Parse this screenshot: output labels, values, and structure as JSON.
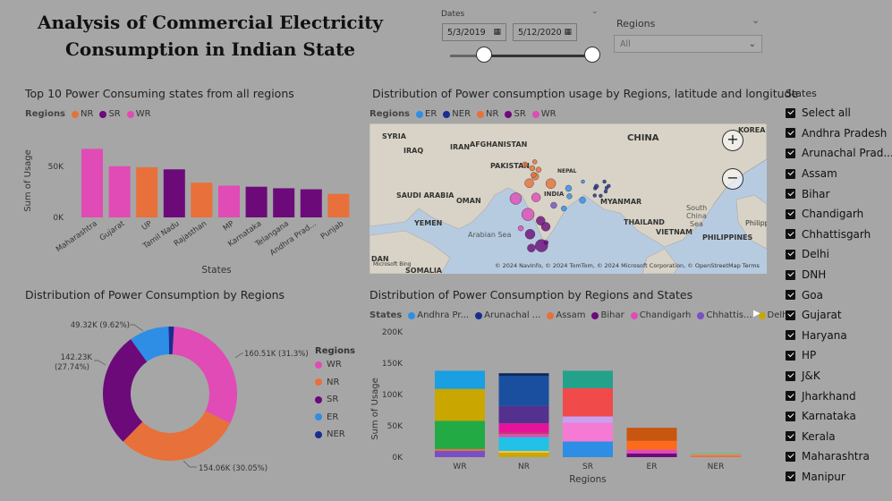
{
  "title_line1": "Analysis of Commercial Electricity",
  "title_line2": "Consumption in Indian State",
  "dates": {
    "label": "Dates",
    "start": "5/3/2019",
    "end": "5/12/2020",
    "slider_start_fraction": 0.0,
    "slider_end_fraction": 1.0
  },
  "regions_slicer": {
    "label": "Regions",
    "value": "All"
  },
  "bar_visual": {
    "title": "Top 10 Power Consuming states from all regions",
    "legend_title": "Regions",
    "legend": [
      {
        "name": "NR",
        "color": "#e8703a"
      },
      {
        "name": "SR",
        "color": "#6c0a7a"
      },
      {
        "name": "WR",
        "color": "#e04bb6"
      }
    ]
  },
  "map_visual": {
    "title": "Distribution of Power consumption usage by Regions, latitude and longitude",
    "legend_title": "Regions",
    "legend": [
      {
        "name": "ER",
        "color": "#2e8ee6"
      },
      {
        "name": "NER",
        "color": "#1a2d8f"
      },
      {
        "name": "NR",
        "color": "#e8703a"
      },
      {
        "name": "SR",
        "color": "#6c0a7a"
      },
      {
        "name": "WR",
        "color": "#e04bb6"
      }
    ],
    "labels": {
      "syria": "SYRIA",
      "iran": "IRAN",
      "afghanistan": "AFGHANISTAN",
      "iraq": "IRAQ",
      "china": "CHINA",
      "korea": "KOREA",
      "pakistan": "PAKISTAN",
      "nepal": "NEPAL",
      "saudi": "SAUDI ARABIA",
      "oman": "OMAN",
      "india": "INDIA",
      "myanmar": "MYANMAR",
      "yemen": "YEMEN",
      "thailand": "THAILAND",
      "vietnam": "VIETNAM",
      "philippines": "PHILIPPINES",
      "philip_partial": "Philipp",
      "somalia": "SOMALIA",
      "dan": "DAN",
      "arabian_sea": "Arabian Sea",
      "south_china_sea_1": "South",
      "south_china_sea_2": "China",
      "south_china_sea_3": "Sea",
      "bing": "Microsoft Bing",
      "copyright": "© 2024 NavInfo, © 2024 TomTom, © 2024 Microsoft Corporation, © OpenStreetMap  Terms"
    },
    "zoom_in": "+",
    "zoom_out": "−"
  },
  "donut_visual": {
    "title": "Distribution of Power Consumption by Regions",
    "legend_title": "Regions",
    "slices": [
      {
        "name": "WR",
        "value": 160.51,
        "label": "160.51K (31.3%)",
        "color": "#e04bb6"
      },
      {
        "name": "NR",
        "value": 154.06,
        "label": "154.06K (30.05%)",
        "color": "#e8703a"
      },
      {
        "name": "SR",
        "value": 142.23,
        "label_line1": "142.23K",
        "label_line2": "(27.74%)",
        "color": "#6c0a7a"
      },
      {
        "name": "ER",
        "value": 49.32,
        "label": "49.32K (9.62%)",
        "color": "#2e8ee6"
      },
      {
        "name": "NER",
        "value": 6.58,
        "label": "",
        "color": "#1a2d8f"
      }
    ]
  },
  "stacked_visual": {
    "title": "Distribution of Power Consumption by Regions and States",
    "legend_title": "States",
    "legend": [
      {
        "name": "Andhra Pr...",
        "color": "#2e8ee6"
      },
      {
        "name": "Arunachal ...",
        "color": "#1a2d8f"
      },
      {
        "name": "Assam",
        "color": "#e8703a"
      },
      {
        "name": "Bihar",
        "color": "#6c0a7a"
      },
      {
        "name": "Chandigarh",
        "color": "#e04bb6"
      },
      {
        "name": "Chhattis...",
        "color": "#7b4fc4"
      },
      {
        "name": "Delhi",
        "color": "#c9a600"
      }
    ],
    "more_arrow": "▶"
  },
  "states_slicer": {
    "title": "States",
    "items": [
      "Select all",
      "Andhra Pradesh",
      "Arunachal Prad...",
      "Assam",
      "Bihar",
      "Chandigarh",
      "Chhattisgarh",
      "Delhi",
      "DNH",
      "Goa",
      "Gujarat",
      "Haryana",
      "HP",
      "J&K",
      "Jharkhand",
      "Karnataka",
      "Kerala",
      "Maharashtra",
      "Manipur"
    ]
  },
  "chart_data": [
    {
      "type": "bar",
      "title": "Top 10 Power Consuming states from all regions",
      "xlabel": "States",
      "ylabel": "Sum of Usage",
      "categories": [
        "Maharashtra",
        "Gujarat",
        "UP",
        "Tamil Nadu",
        "Rajasthan",
        "MP",
        "Karnataka",
        "Telangana",
        "Andhra Prad...",
        "Punjab"
      ],
      "values": [
        67000,
        50000,
        49000,
        47000,
        34000,
        31000,
        30000,
        28500,
        27500,
        23000
      ],
      "colors": [
        "#e04bb6",
        "#e04bb6",
        "#e8703a",
        "#6c0a7a",
        "#e8703a",
        "#e04bb6",
        "#6c0a7a",
        "#6c0a7a",
        "#6c0a7a",
        "#e8703a"
      ],
      "yticks": [
        {
          "value": 0,
          "label": "0K"
        },
        {
          "value": 50000,
          "label": "50K"
        }
      ],
      "ylim": [
        0,
        70000
      ],
      "legend_placement": "top-left",
      "grid": false
    },
    {
      "type": "pie",
      "title": "Distribution of Power Consumption by Regions",
      "categories": [
        "WR",
        "NR",
        "SR",
        "ER",
        "NER"
      ],
      "values": [
        160.51,
        154.06,
        142.23,
        49.32,
        6.58
      ],
      "units": "K",
      "legend_placement": "right"
    },
    {
      "type": "bar",
      "stacked": true,
      "title": "Distribution of Power Consumption by Regions and States",
      "xlabel": "Regions",
      "ylabel": "Sum of Usage",
      "categories": [
        "WR",
        "NR",
        "SR",
        "ER",
        "NER"
      ],
      "ylim": [
        0,
        200000
      ],
      "yticks": [
        {
          "value": 0,
          "label": "0K"
        },
        {
          "value": 50000,
          "label": "50K"
        },
        {
          "value": 100000,
          "label": "100K"
        },
        {
          "value": 150000,
          "label": "150K"
        },
        {
          "value": 200000,
          "label": "200K"
        }
      ],
      "stacks": [
        [
          {
            "v": 10000,
            "c": "#7b4fc4"
          },
          {
            "v": 3000,
            "c": "#e8703a"
          },
          {
            "v": 45000,
            "c": "#22aa44"
          },
          {
            "v": 51000,
            "c": "#c9a600"
          },
          {
            "v": 29000,
            "c": "#1a9fe0"
          }
        ],
        [
          {
            "v": 7000,
            "c": "#c9a600"
          },
          {
            "v": 3000,
            "c": "#f3c24a"
          },
          {
            "v": 22000,
            "c": "#22c1e6"
          },
          {
            "v": 5000,
            "c": "#e04bb6"
          },
          {
            "v": 3000,
            "c": "#c13a6f"
          },
          {
            "v": 14000,
            "c": "#e6139a"
          },
          {
            "v": 28000,
            "c": "#55318f"
          },
          {
            "v": 48000,
            "c": "#1a4f9f"
          },
          {
            "v": 4000,
            "c": "#0a2a5a"
          }
        ],
        [
          {
            "v": 25000,
            "c": "#2e8ee6"
          },
          {
            "v": 30000,
            "c": "#f57ad3"
          },
          {
            "v": 10000,
            "c": "#c9a0f0"
          },
          {
            "v": 45000,
            "c": "#f04a4a"
          },
          {
            "v": 28000,
            "c": "#24a18a"
          }
        ],
        [
          {
            "v": 6000,
            "c": "#6c0a7a"
          },
          {
            "v": 6000,
            "c": "#e04bb6"
          },
          {
            "v": 14000,
            "c": "#ff6a1a"
          },
          {
            "v": 21000,
            "c": "#c9560f"
          }
        ],
        [
          {
            "v": 2500,
            "c": "#e8703a"
          },
          {
            "v": 2000,
            "c": "#f08070"
          },
          {
            "v": 2000,
            "c": "#6bc47c"
          }
        ]
      ],
      "legend_placement": "top",
      "grid": false
    }
  ],
  "map_points": [
    {
      "lon": 74.8,
      "lat": 31.6,
      "r": 3,
      "c": "#e8703a"
    },
    {
      "lon": 77.1,
      "lat": 32.3,
      "r": 2.5,
      "c": "#e8703a"
    },
    {
      "lon": 76.5,
      "lat": 30.7,
      "r": 3,
      "c": "#e8703a"
    },
    {
      "lon": 77.2,
      "lat": 28.6,
      "r": 4,
      "c": "#e8703a"
    },
    {
      "lon": 75.8,
      "lat": 26.9,
      "r": 5,
      "c": "#e8703a"
    },
    {
      "lon": 80.9,
      "lat": 26.8,
      "r": 5.5,
      "c": "#e8703a"
    },
    {
      "lon": 78.0,
      "lat": 30.3,
      "r": 3,
      "c": "#e8703a"
    },
    {
      "lon": 76.8,
      "lat": 29.0,
      "r": 3,
      "c": "#e8703a"
    },
    {
      "lon": 72.6,
      "lat": 23.0,
      "r": 6.5,
      "c": "#e04bb6"
    },
    {
      "lon": 77.4,
      "lat": 23.3,
      "r": 5,
      "c": "#e04bb6"
    },
    {
      "lon": 81.6,
      "lat": 21.3,
      "r": 3.5,
      "c": "#7b4fc4"
    },
    {
      "lon": 75.5,
      "lat": 19.0,
      "r": 7,
      "c": "#e04bb6"
    },
    {
      "lon": 73.8,
      "lat": 15.5,
      "r": 3,
      "c": "#e04bb6"
    },
    {
      "lon": 78.5,
      "lat": 17.4,
      "r": 5,
      "c": "#6c0a7a"
    },
    {
      "lon": 79.7,
      "lat": 15.9,
      "r": 5,
      "c": "#6c0a7a"
    },
    {
      "lon": 76.0,
      "lat": 14.0,
      "r": 5.5,
      "c": "#6c0a7a"
    },
    {
      "lon": 78.7,
      "lat": 11.1,
      "r": 7,
      "c": "#6c0a7a"
    },
    {
      "lon": 76.3,
      "lat": 10.5,
      "r": 4.5,
      "c": "#6c0a7a"
    },
    {
      "lon": 79.8,
      "lat": 11.9,
      "r": 2.5,
      "c": "#6c0a7a"
    },
    {
      "lon": 85.3,
      "lat": 23.6,
      "r": 3,
      "c": "#2e8ee6"
    },
    {
      "lon": 85.1,
      "lat": 25.6,
      "r": 3.5,
      "c": "#2e8ee6"
    },
    {
      "lon": 84.0,
      "lat": 20.5,
      "r": 3,
      "c": "#2e8ee6"
    },
    {
      "lon": 88.4,
      "lat": 22.6,
      "r": 3.5,
      "c": "#2e8ee6"
    },
    {
      "lon": 88.5,
      "lat": 27.3,
      "r": 2,
      "c": "#2e8ee6"
    },
    {
      "lon": 91.7,
      "lat": 26.1,
      "r": 2.5,
      "c": "#1a2d8f"
    },
    {
      "lon": 93.6,
      "lat": 27.3,
      "r": 2,
      "c": "#1a2d8f"
    },
    {
      "lon": 94.1,
      "lat": 25.7,
      "r": 2,
      "c": "#1a2d8f"
    },
    {
      "lon": 93.9,
      "lat": 24.8,
      "r": 2,
      "c": "#1a2d8f"
    },
    {
      "lon": 92.7,
      "lat": 23.7,
      "r": 2,
      "c": "#1a2d8f"
    },
    {
      "lon": 91.3,
      "lat": 23.8,
      "r": 2,
      "c": "#1a2d8f"
    },
    {
      "lon": 91.4,
      "lat": 25.6,
      "r": 2,
      "c": "#1a2d8f"
    },
    {
      "lon": 94.6,
      "lat": 26.2,
      "r": 2,
      "c": "#1a2d8f"
    }
  ]
}
